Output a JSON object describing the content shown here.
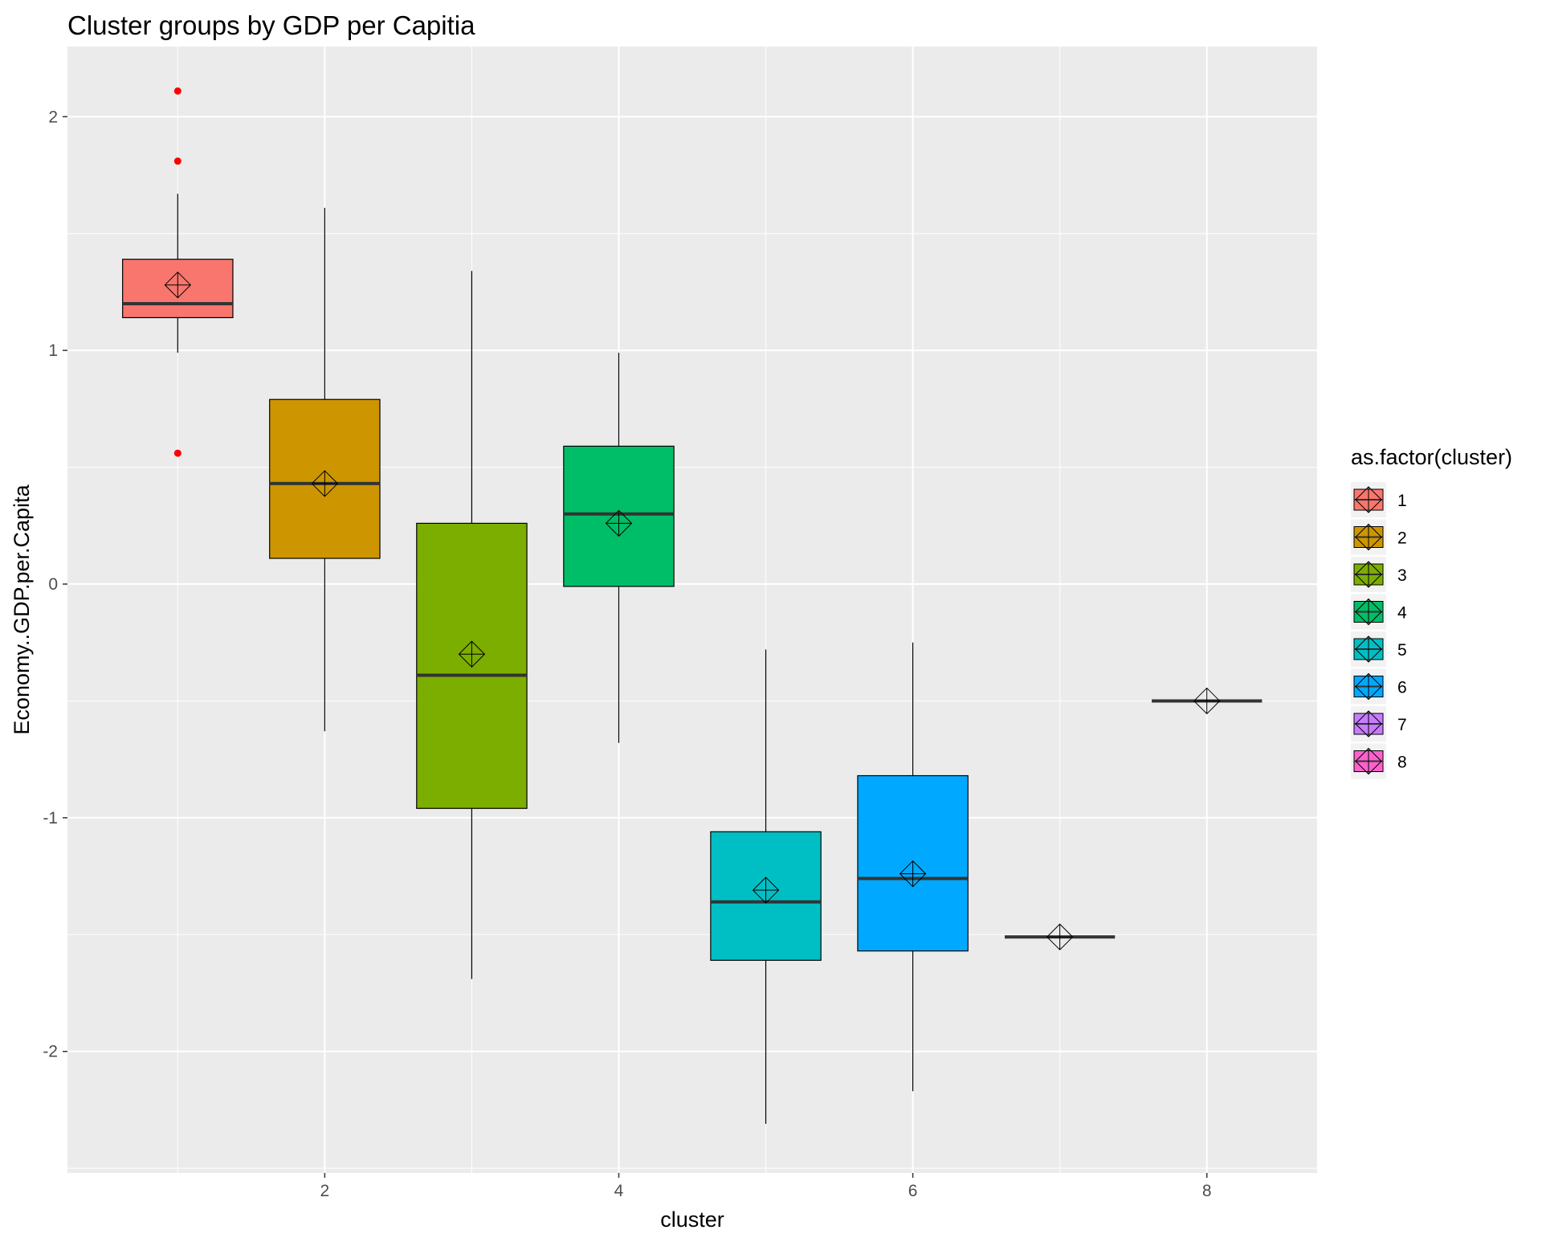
{
  "chart_data": {
    "type": "boxplot",
    "title": "Cluster groups by GDP per Capitia",
    "xlabel": "cluster",
    "ylabel": "Economy..GDP.per.Capita",
    "xlim": [
      0.25,
      8.75
    ],
    "ylim": [
      -2.52,
      2.3
    ],
    "x_ticks": [
      2,
      4,
      6,
      8
    ],
    "x_tick_labels": [
      "2",
      "4",
      "6",
      "8"
    ],
    "y_ticks": [
      -2,
      -1,
      0,
      1,
      2
    ],
    "y_tick_labels": [
      "-2",
      "-1",
      "0",
      "1",
      "2"
    ],
    "grid": true,
    "legend": {
      "title": "as.factor(cluster)",
      "placement": "right"
    },
    "outlier_color": "#ff0000",
    "mean_marker": "diamond-plus",
    "series": [
      {
        "name": "1",
        "x": 1,
        "color": "#f8766d",
        "whisker_low": 0.99,
        "q1": 1.14,
        "median": 1.2,
        "q3": 1.39,
        "whisker_high": 1.67,
        "mean": 1.28,
        "outliers": [
          2.11,
          1.81,
          0.56
        ]
      },
      {
        "name": "2",
        "x": 2,
        "color": "#cd9600",
        "whisker_low": -0.63,
        "q1": 0.11,
        "median": 0.43,
        "q3": 0.79,
        "whisker_high": 1.61,
        "mean": 0.43,
        "outliers": []
      },
      {
        "name": "3",
        "x": 3,
        "color": "#7cae00",
        "whisker_low": -1.69,
        "q1": -0.96,
        "median": -0.39,
        "q3": 0.26,
        "whisker_high": 1.34,
        "mean": -0.3,
        "outliers": []
      },
      {
        "name": "4",
        "x": 4,
        "color": "#00be67",
        "whisker_low": -0.68,
        "q1": -0.01,
        "median": 0.3,
        "q3": 0.59,
        "whisker_high": 0.99,
        "mean": 0.26,
        "outliers": []
      },
      {
        "name": "5",
        "x": 5,
        "color": "#00bfc4",
        "whisker_low": -2.31,
        "q1": -1.61,
        "median": -1.36,
        "q3": -1.06,
        "whisker_high": -0.28,
        "mean": -1.31,
        "outliers": []
      },
      {
        "name": "6",
        "x": 6,
        "color": "#00a9ff",
        "whisker_low": -2.17,
        "q1": -1.57,
        "median": -1.26,
        "q3": -0.82,
        "whisker_high": -0.25,
        "mean": -1.24,
        "outliers": []
      },
      {
        "name": "7",
        "x": 7,
        "color": "#c77cff",
        "whisker_low": -1.51,
        "q1": -1.51,
        "median": -1.51,
        "q3": -1.51,
        "whisker_high": -1.51,
        "mean": -1.51,
        "outliers": []
      },
      {
        "name": "8",
        "x": 8,
        "color": "#ff61cc",
        "whisker_low": -0.5,
        "q1": -0.5,
        "median": -0.5,
        "q3": -0.5,
        "whisker_high": -0.5,
        "mean": -0.5,
        "outliers": []
      }
    ]
  }
}
